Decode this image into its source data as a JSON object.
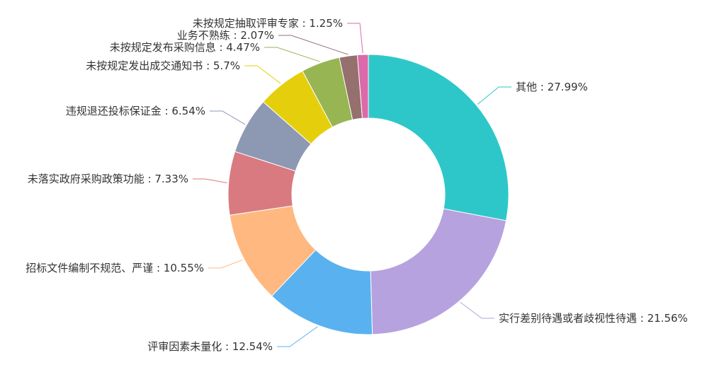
{
  "chart_data": {
    "type": "pie",
    "variant": "donut",
    "title": "",
    "legend": "none",
    "slices": [
      {
        "name": "其他",
        "value": 27.99,
        "label": "其他 : 27.99%",
        "color": "#2ec7c9"
      },
      {
        "name": "实行差别待遇或者歧视性待遇",
        "value": 21.56,
        "label": "实行差别待遇或者歧视性待遇 : 21.56%",
        "color": "#b6a2de"
      },
      {
        "name": "评审因素未量化",
        "value": 12.54,
        "label": "评审因素未量化 : 12.54%",
        "color": "#5ab1ef"
      },
      {
        "name": "招标文件编制不规范、严谨",
        "value": 10.55,
        "label": "招标文件编制不规范、严谨 : 10.55%",
        "color": "#ffb980"
      },
      {
        "name": "未落实政府采购政策功能",
        "value": 7.33,
        "label": "未落实政府采购政策功能 : 7.33%",
        "color": "#d87a80"
      },
      {
        "name": "违规退还投标保证金",
        "value": 6.54,
        "label": "违规退还投标保证金 : 6.54%",
        "color": "#8d98b3"
      },
      {
        "name": "未按规定发出成交通知书",
        "value": 5.7,
        "label": "未按规定发出成交通知书 : 5.7%",
        "color": "#e5cf0d"
      },
      {
        "name": "未按规定发布采购信息",
        "value": 4.47,
        "label": "未按规定发布采购信息 : 4.47%",
        "color": "#97b552"
      },
      {
        "name": "业务不熟练",
        "value": 2.07,
        "label": "业务不熟练 : 2.07%",
        "color": "#95706d"
      },
      {
        "name": "未按规定抽取评审专家",
        "value": 1.25,
        "label": "未按规定抽取评审专家 : 1.25%",
        "color": "#dc69aa"
      }
    ]
  }
}
